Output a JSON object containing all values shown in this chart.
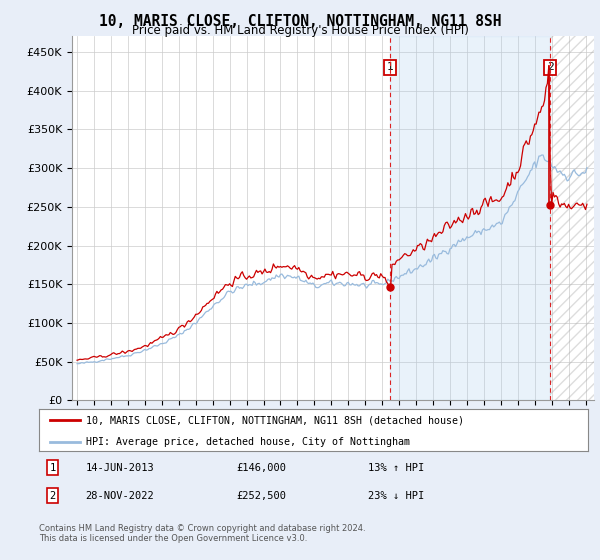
{
  "title": "10, MARIS CLOSE, CLIFTON, NOTTINGHAM, NG11 8SH",
  "subtitle": "Price paid vs. HM Land Registry's House Price Index (HPI)",
  "ylim": [
    0,
    470000
  ],
  "yticks": [
    0,
    50000,
    100000,
    150000,
    200000,
    250000,
    300000,
    350000,
    400000,
    450000
  ],
  "legend_line1": "10, MARIS CLOSE, CLIFTON, NOTTINGHAM, NG11 8SH (detached house)",
  "legend_line2": "HPI: Average price, detached house, City of Nottingham",
  "legend_color1": "#cc0000",
  "legend_color2": "#99bbdd",
  "shade_color": "#ddeeff",
  "marker1_x": 2013.46,
  "marker1_y": 146000,
  "marker1_date": "14-JUN-2013",
  "marker1_price": 146000,
  "marker1_label": "13% ↑ HPI",
  "marker2_x": 2022.92,
  "marker2_y": 252500,
  "marker2_date": "28-NOV-2022",
  "marker2_price": 252500,
  "marker2_label": "23% ↓ HPI",
  "footnote": "Contains HM Land Registry data © Crown copyright and database right 2024.\nThis data is licensed under the Open Government Licence v3.0.",
  "background_color": "#e8eef8",
  "plot_bg": "#ffffff",
  "grid_color": "#cccccc",
  "xmin": 1994.7,
  "xmax": 2025.5
}
